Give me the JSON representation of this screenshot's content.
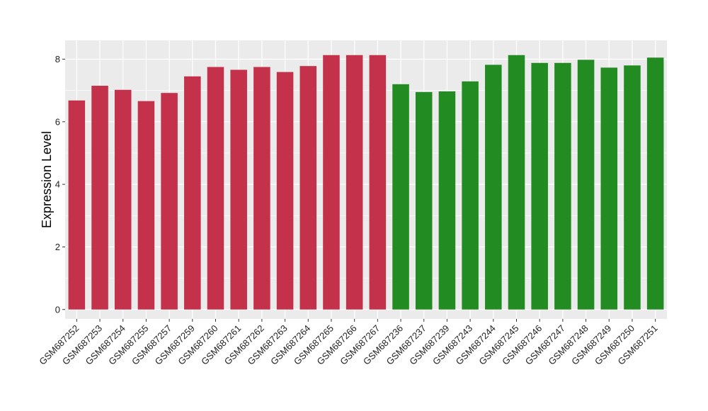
{
  "chart_data": {
    "type": "bar",
    "title": "",
    "xlabel": "",
    "ylabel": "Expression Level",
    "ylim": [
      -0.3,
      8.6
    ],
    "yticks": [
      0,
      2,
      4,
      6,
      8
    ],
    "grid": true,
    "legend": "none",
    "categories": [
      "GSM687252",
      "GSM687253",
      "GSM687254",
      "GSM687255",
      "GSM687257",
      "GSM687259",
      "GSM687260",
      "GSM687261",
      "GSM687262",
      "GSM687263",
      "GSM687264",
      "GSM687265",
      "GSM687266",
      "GSM687267",
      "GSM687236",
      "GSM687237",
      "GSM687239",
      "GSM687243",
      "GSM687244",
      "GSM687245",
      "GSM687246",
      "GSM687247",
      "GSM687248",
      "GSM687249",
      "GSM687250",
      "GSM687251"
    ],
    "values": [
      6.68,
      7.15,
      7.02,
      6.66,
      6.92,
      7.45,
      7.75,
      7.66,
      7.75,
      7.59,
      7.78,
      8.13,
      8.13,
      8.13,
      7.2,
      6.95,
      6.97,
      7.29,
      7.82,
      8.13,
      7.88,
      7.88,
      7.98,
      7.73,
      7.8,
      8.05
    ],
    "groups": [
      "red",
      "red",
      "red",
      "red",
      "red",
      "red",
      "red",
      "red",
      "red",
      "red",
      "red",
      "red",
      "red",
      "red",
      "green",
      "green",
      "green",
      "green",
      "green",
      "green",
      "green",
      "green",
      "green",
      "green",
      "green",
      "green"
    ],
    "colors": {
      "red": "#C4314B",
      "green": "#228B22",
      "panel": "#EBEBEB",
      "grid": "#FFFFFF"
    }
  }
}
